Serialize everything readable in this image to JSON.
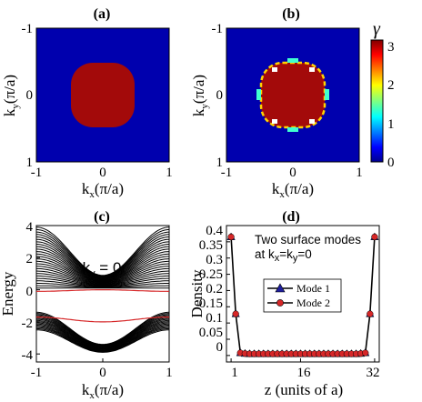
{
  "chart_data": [
    {
      "id": "a",
      "type": "heatmap",
      "title": "(a)",
      "xlabel": "k_x(π/a)",
      "ylabel": "k_y(π/a)",
      "xlim": [
        -1,
        1
      ],
      "ylim": [
        1,
        -1
      ],
      "xticks": [
        "-1",
        "0",
        "1"
      ],
      "yticks": [
        "-1",
        "0",
        "1"
      ],
      "background_value": 0,
      "region": {
        "shape": "rounded-square",
        "half_width": 0.48,
        "value": 3.14
      }
    },
    {
      "id": "b",
      "type": "heatmap",
      "title": "(b)",
      "xlabel": "k_x(π/a)",
      "ylabel": "k_y(π/a)",
      "xlim": [
        -1,
        1
      ],
      "ylim": [
        1,
        -1
      ],
      "xticks": [
        "-1",
        "0",
        "1"
      ],
      "yticks": [
        "-1",
        "0",
        "1"
      ],
      "background_value": 0,
      "region": {
        "shape": "rounded-square",
        "half_width": 0.48,
        "value": 3.14,
        "boundary_values": [
          1.2,
          2.5,
          3.0
        ]
      },
      "colorbar": {
        "label": "γ",
        "min": 0,
        "max": 3.14,
        "ticks": [
          "0",
          "1",
          "2",
          "3"
        ]
      }
    },
    {
      "id": "c",
      "type": "line",
      "title": "(c)",
      "annotation": "k_y = 0",
      "xlabel": "k_x(π/a)",
      "ylabel": "Energy",
      "xlim": [
        -1,
        1
      ],
      "ylim": [
        -4.5,
        4
      ],
      "xticks": [
        "-1",
        "0",
        "1"
      ],
      "yticks": [
        "-4",
        "-2",
        "0",
        "2",
        "4"
      ],
      "bands_upper": {
        "count": 26,
        "center_min": [
          0.1,
          0.9
        ],
        "edge_max": [
          0.1,
          3.9
        ]
      },
      "bands_lower": {
        "count": 16,
        "center_min": [
          -3.9,
          -3.4
        ],
        "edge_max": [
          -2.5,
          -1.4
        ]
      },
      "surface_modes": [
        {
          "center": 0.0,
          "edge": -0.1,
          "color": "#d62728"
        },
        {
          "center": -2.0,
          "edge": -1.7,
          "color": "#d62728"
        }
      ]
    },
    {
      "id": "d",
      "type": "line",
      "title": "(d)",
      "annotation": "Two surface modes at k_x=k_y=0",
      "xlabel": "z (units of a)",
      "ylabel": "Density",
      "xlim": [
        0,
        33
      ],
      "ylim": [
        -0.02,
        0.4
      ],
      "xticks": [
        "1",
        "16",
        "32"
      ],
      "yticks": [
        "0",
        "0.05",
        "0.1",
        "0.15",
        "0.2",
        "0.25",
        "0.3",
        "0.35",
        "0.4"
      ],
      "x": [
        1,
        2,
        3,
        4,
        5,
        6,
        7,
        8,
        9,
        10,
        11,
        12,
        13,
        14,
        15,
        16,
        17,
        18,
        19,
        20,
        21,
        22,
        23,
        24,
        25,
        26,
        27,
        28,
        29,
        30,
        31,
        32
      ],
      "series": [
        {
          "name": "Mode 1",
          "marker": "triangle",
          "color": "#1f1f9e",
          "values": [
            0.365,
            0.128,
            0.008,
            0.006,
            0.005,
            0.005,
            0.005,
            0.005,
            0.005,
            0.005,
            0.005,
            0.005,
            0.005,
            0.005,
            0.005,
            0.005,
            0.005,
            0.005,
            0.005,
            0.005,
            0.005,
            0.005,
            0.005,
            0.005,
            0.005,
            0.005,
            0.005,
            0.005,
            0.006,
            0.008,
            0.128,
            0.365
          ]
        },
        {
          "name": "Mode 2",
          "marker": "circle",
          "color": "#d62728",
          "values": [
            0.365,
            0.128,
            0.008,
            0.006,
            0.005,
            0.005,
            0.005,
            0.005,
            0.005,
            0.005,
            0.005,
            0.005,
            0.005,
            0.005,
            0.005,
            0.005,
            0.005,
            0.005,
            0.005,
            0.005,
            0.005,
            0.005,
            0.005,
            0.005,
            0.005,
            0.005,
            0.005,
            0.005,
            0.006,
            0.008,
            0.128,
            0.365
          ]
        }
      ],
      "legend": "center"
    }
  ]
}
